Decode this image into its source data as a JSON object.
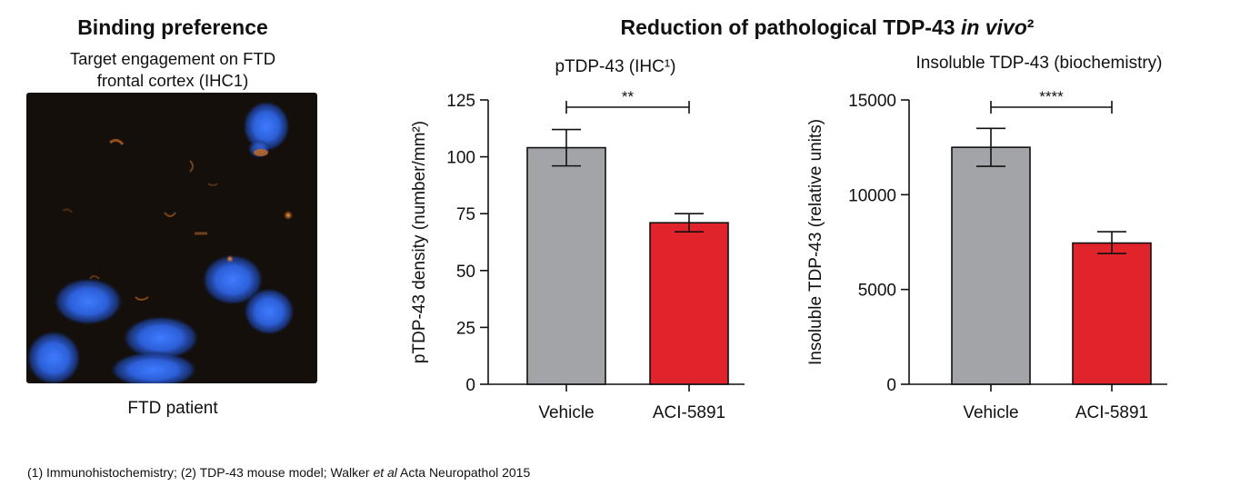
{
  "left_panel": {
    "title": "Binding preference",
    "subtitle_line1": "Target engagement on FTD",
    "subtitle_line2": "frontal cortex (IHC1)",
    "image_icon": "fluorescence-microscopy-image",
    "caption": "FTD patient"
  },
  "main_title": {
    "text": "Reduction of pathological TDP-43 ",
    "italic": "in vivo",
    "superscript": "²"
  },
  "footnote": {
    "part1": "(1) Immunohistochemistry; (2) TDP-43 mouse model; Walker ",
    "italic": "et al",
    "part2": " Acta Neuropathol 2015"
  },
  "colors": {
    "vehicle": "#a3a4a8",
    "aci": "#e1242b",
    "axis": "#111111"
  },
  "chart_data": [
    {
      "type": "bar",
      "title": "pTDP-43 (IHC¹)",
      "ylabel": "pTDP-43 density (number/mm²)",
      "categories": [
        "Vehicle",
        "ACI-5891"
      ],
      "values": [
        104,
        71
      ],
      "error_low": [
        96,
        67
      ],
      "error_high": [
        112,
        75
      ],
      "ylim": [
        0,
        125
      ],
      "yticks": [
        0,
        25,
        50,
        75,
        100,
        125
      ],
      "ytick_labels": [
        "0",
        "25",
        "50",
        "75",
        "100",
        "125"
      ],
      "significance": "**"
    },
    {
      "type": "bar",
      "title": "Insoluble TDP-43 (biochemistry)",
      "ylabel": "Insoluble TDP-43 (relative units)",
      "categories": [
        "Vehicle",
        "ACI-5891"
      ],
      "values": [
        12500,
        7450
      ],
      "error_low": [
        11500,
        6900
      ],
      "error_high": [
        13500,
        8050
      ],
      "ylim": [
        0,
        15000
      ],
      "yticks": [
        0,
        5000,
        10000,
        15000
      ],
      "ytick_labels": [
        "0",
        "5000",
        "10000",
        "15000"
      ],
      "significance": "****"
    }
  ]
}
